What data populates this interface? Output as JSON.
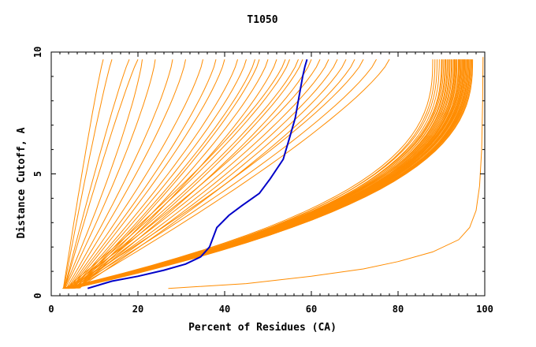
{
  "chart_data": {
    "type": "line",
    "title": "T1050",
    "xlabel": "Percent of Residues (CA)",
    "ylabel": "Distance Cutoff, A",
    "xlim": [
      0,
      100
    ],
    "ylim": [
      0,
      10
    ],
    "x_ticks": [
      0,
      20,
      40,
      60,
      80,
      100
    ],
    "y_ticks": [
      0,
      5,
      10
    ],
    "grid": false,
    "legend": "none",
    "colors": {
      "models": "#ff8c00",
      "highlight": "#0000c8",
      "axes": "#000000"
    },
    "highlighted_series": {
      "points": [
        [
          8.4,
          0.3
        ],
        [
          14,
          0.6
        ],
        [
          20,
          0.8
        ],
        [
          26,
          1.05
        ],
        [
          31,
          1.3
        ],
        [
          34.5,
          1.6
        ],
        [
          36.5,
          2.0
        ],
        [
          38.2,
          2.8
        ],
        [
          41,
          3.3
        ],
        [
          44,
          3.7
        ],
        [
          48,
          4.2
        ],
        [
          50.5,
          4.8
        ],
        [
          53.5,
          5.6
        ],
        [
          55,
          6.5
        ],
        [
          56.3,
          7.3
        ],
        [
          57.3,
          8.3
        ],
        [
          58,
          9.0
        ],
        [
          58.5,
          9.4
        ],
        [
          59,
          9.7
        ]
      ]
    },
    "series_groups": {
      "steep_left": {
        "count": 4,
        "start_x": [
          2.8,
          2.9,
          3.0,
          3.1
        ],
        "end_x": [
          12,
          14,
          18,
          20
        ],
        "shape": 0.9
      },
      "fan_upper": {
        "count": 26,
        "start_x": [
          3.0,
          3.2,
          3.5,
          3.8,
          4.0,
          4.2,
          4.5,
          4.8,
          5.0,
          5.3,
          5.6,
          6.0,
          6.5,
          3.4,
          4.1,
          4.6,
          5.2,
          5.8,
          3.6,
          4.4,
          5.0,
          5.5,
          6.2,
          3.9,
          4.7,
          5.4
        ],
        "end_x": [
          21,
          24,
          28,
          31,
          35,
          38,
          40,
          43,
          45,
          47,
          48,
          50,
          52,
          54,
          55,
          57,
          58,
          60,
          62,
          64,
          66,
          68,
          70,
          72,
          75,
          78
        ],
        "shape": 1.25
      },
      "dense_bundle": {
        "count": 42,
        "start_x": [
          2.6,
          2.8,
          3.0,
          3.2,
          3.4,
          3.6,
          3.8,
          4.0,
          4.2,
          4.4,
          4.6,
          4.8,
          5.0,
          2.7,
          2.9,
          3.1,
          3.3,
          3.5,
          3.7,
          3.9,
          4.1,
          4.3,
          4.5,
          4.7,
          4.9,
          5.1,
          2.65,
          2.85,
          3.05,
          3.25,
          3.45,
          3.65,
          3.85,
          4.05,
          4.25,
          4.45,
          4.65,
          4.85,
          5.05,
          3.15,
          3.55,
          3.95
        ],
        "end_x": [
          88,
          89,
          90,
          90.5,
          91,
          91.5,
          92,
          92.5,
          93,
          93.3,
          93.6,
          94,
          94.3,
          94.6,
          95,
          95.3,
          95.6,
          96,
          96.3,
          96.6,
          97,
          88.5,
          89.5,
          90.2,
          90.8,
          91.3,
          91.8,
          92.3,
          92.8,
          93.1,
          93.5,
          93.9,
          94.2,
          94.5,
          94.8,
          95.1,
          95.4,
          95.8,
          96.1,
          96.5,
          96.8,
          97.2
        ],
        "shape": 2.6
      },
      "right_edge": {
        "points": [
          [
            27,
            0.3
          ],
          [
            45,
            0.5
          ],
          [
            60,
            0.8
          ],
          [
            72,
            1.1
          ],
          [
            80,
            1.4
          ],
          [
            88,
            1.8
          ],
          [
            94,
            2.3
          ],
          [
            96.5,
            2.8
          ],
          [
            98,
            3.5
          ],
          [
            98.8,
            4.5
          ],
          [
            99.3,
            6
          ],
          [
            99.5,
            8
          ],
          [
            99.6,
            9.8
          ]
        ]
      }
    }
  }
}
